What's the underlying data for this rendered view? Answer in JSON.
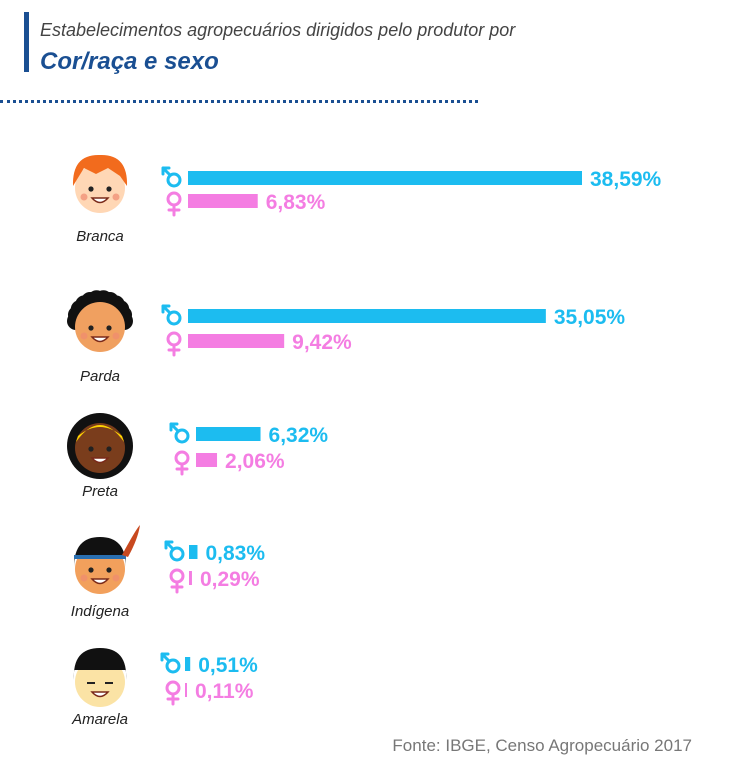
{
  "header": {
    "subtitle": "Estabelecimentos agropecuários dirigidos pelo produtor por",
    "title": "Cor/raça e sexo"
  },
  "footer": {
    "source": "Fonte: IBGE, Censo Agropecuário 2017"
  },
  "colors": {
    "male": "#1cbcf0",
    "female": "#f47de2",
    "accent": "#1a4f92"
  },
  "chart_data": {
    "type": "bar",
    "orientation": "horizontal",
    "categories": [
      "Branca",
      "Parda",
      "Preta",
      "Indígena",
      "Amarela"
    ],
    "series": [
      {
        "name": "male-symbol",
        "values": [
          38.59,
          35.05,
          6.32,
          0.83,
          0.51
        ],
        "labels": [
          "38,59%",
          "35,05%",
          "6,32%",
          "0,83%",
          "0,51%"
        ]
      },
      {
        "name": "female-symbol",
        "values": [
          6.83,
          9.42,
          2.06,
          0.29,
          0.11
        ],
        "labels": [
          "6,83%",
          "9,42%",
          "2,06%",
          "0,29%",
          "0,11%"
        ]
      }
    ],
    "icons": [
      "face-branca-icon",
      "face-parda-icon",
      "face-preta-icon",
      "face-indigena-icon",
      "face-amarela-icon"
    ],
    "grid": false,
    "legend": "none"
  }
}
